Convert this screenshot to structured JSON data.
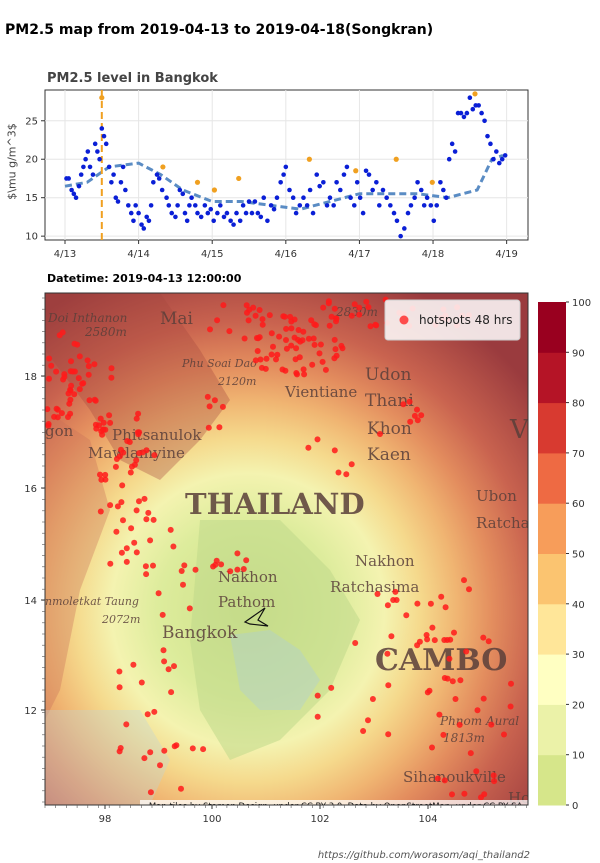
{
  "page": {
    "title": "PM2.5 map from 2019-04-13 to 2019-04-18(Songkran)",
    "footer": "https://github.com/worasom/aqi_thailand2"
  },
  "chart_data": [
    {
      "type": "scatter",
      "title": "PM2.5 level in Bangkok",
      "ylabel": "$\\mu g/m^3$",
      "xlabel": "",
      "x_ticks": [
        "4/13",
        "4/14",
        "4/15",
        "4/16",
        "4/17",
        "4/18",
        "4/19"
      ],
      "y_ticks": [
        10,
        15,
        20,
        25
      ],
      "xlim": [
        0,
        6.1
      ],
      "ylim": [
        9.5,
        29
      ],
      "current_time_marker": 0.5,
      "colors": {
        "scatter": "#0a1fd6",
        "highlight": "#f0a020",
        "trend": "#5a8cc4",
        "marker_line": "#f0a020"
      },
      "series": [
        {
          "name": "",
          "x": [
            0.02,
            0.05,
            0.09,
            0.12,
            0.15,
            0.19,
            0.22,
            0.25,
            0.28,
            0.31,
            0.34,
            0.38,
            0.41,
            0.44,
            0.47,
            0.5,
            0.53,
            0.56,
            0.6,
            0.63,
            0.66,
            0.69,
            0.72,
            0.76,
            0.79,
            0.82,
            0.86,
            0.9,
            0.93,
            0.96,
            1.0,
            1.04,
            1.07,
            1.11,
            1.14,
            1.17,
            1.2,
            1.25,
            1.28,
            1.32,
            1.38,
            1.41,
            1.45,
            1.5,
            1.53,
            1.56,
            1.6,
            1.63,
            1.66,
            1.69,
            1.72,
            1.77,
            1.8,
            1.85,
            1.9,
            1.94,
            1.98,
            2.02,
            2.07,
            2.11,
            2.16,
            2.2,
            2.25,
            2.29,
            2.33,
            2.38,
            2.42,
            2.46,
            2.5,
            2.54,
            2.58,
            2.62,
            2.66,
            2.7,
            2.75,
            2.8,
            2.84,
            2.88,
            2.93,
            2.97,
            3.0,
            3.05,
            3.1,
            3.14,
            3.19,
            3.24,
            3.29,
            3.33,
            3.37,
            3.42,
            3.46,
            3.51,
            3.56,
            3.6,
            3.65,
            3.69,
            3.74,
            3.79,
            3.83,
            3.88,
            3.93,
            3.97,
            4.01,
            4.05,
            4.09,
            4.13,
            4.18,
            4.23,
            4.27,
            4.32,
            4.37,
            4.42,
            4.47,
            4.51,
            4.56,
            4.61,
            4.66,
            4.7,
            4.75,
            4.79,
            4.84,
            4.88,
            4.92,
            4.97,
            5.01,
            5.05,
            5.1,
            5.14,
            5.18,
            5.22,
            5.26,
            5.3,
            5.34,
            5.38,
            5.42,
            5.46,
            5.5,
            5.54,
            5.58,
            5.62,
            5.66,
            5.7,
            5.74,
            5.78,
            5.82,
            5.86,
            5.9,
            5.94,
            5.98
          ],
          "y": [
            17.5,
            17.5,
            16,
            15.5,
            15,
            16.5,
            18,
            19,
            20,
            21,
            19,
            18,
            22,
            21,
            20,
            24,
            23,
            22,
            19,
            17,
            18,
            15,
            14.5,
            17,
            19,
            16,
            14,
            13,
            12,
            14,
            13,
            11.5,
            11,
            12.5,
            12,
            14,
            17,
            18,
            17.5,
            16,
            15,
            14,
            13,
            12.5,
            14,
            16,
            15.5,
            13,
            12,
            14,
            15,
            14,
            13,
            12.5,
            14,
            13,
            13.5,
            12,
            13,
            14,
            12.5,
            13,
            12,
            11.5,
            13,
            12,
            14,
            13,
            14.5,
            13,
            14.5,
            13,
            12.5,
            15,
            12,
            14,
            13.5,
            15,
            17,
            18,
            19,
            16,
            15,
            13,
            14,
            15,
            14,
            16,
            13,
            18,
            16.5,
            17,
            14,
            15,
            14,
            17,
            16,
            18,
            19,
            15,
            14,
            17,
            15,
            13,
            18.5,
            18,
            16,
            17,
            14,
            16,
            15,
            14,
            13,
            12,
            10,
            11,
            13,
            14,
            15,
            17,
            16,
            14,
            15,
            14,
            12,
            14,
            17,
            16,
            15,
            20,
            22,
            21,
            26,
            26,
            25.5,
            26,
            28,
            26.5,
            27,
            27,
            26,
            25,
            23,
            22,
            20,
            21,
            19.5,
            20,
            20.5
          ]
        },
        {
          "name": "",
          "x": [
            0.5,
            1.33,
            1.8,
            2.03,
            2.36,
            3.32,
            3.95,
            4.5,
            4.99,
            5.57
          ],
          "y": [
            28,
            19,
            17,
            16,
            17.5,
            20,
            18.5,
            20,
            17,
            28.5
          ]
        },
        {
          "name": "",
          "x": [
            0,
            0.3,
            0.6,
            1.0,
            1.3,
            1.6,
            2.0,
            2.4,
            2.8,
            3.2,
            3.6,
            4.0,
            4.4,
            4.8,
            5.2,
            5.6,
            5.8,
            5.95
          ],
          "y": [
            16.5,
            17,
            19,
            19.5,
            18,
            16,
            14.5,
            14.5,
            14,
            13.5,
            14.5,
            15.5,
            15.5,
            15.5,
            15,
            16,
            20,
            20.5
          ]
        }
      ]
    },
    {
      "type": "heatmap",
      "title": "Datetime: 2019-04-13 12:00:00",
      "x_ticks": [
        "98",
        "100",
        "102",
        "104"
      ],
      "y_ticks": [
        "12",
        "14",
        "16",
        "18"
      ],
      "legend": {
        "label": "hotspots 48 hrs",
        "placement": "top-right"
      },
      "colorbar": {
        "min": 0,
        "max": 100,
        "ticks": [
          "100",
          "90",
          "80",
          "70",
          "60",
          "50",
          "40",
          "30",
          "20",
          "10",
          "0"
        ],
        "colors": [
          "#d6e68a",
          "#ebf2a8",
          "#ffffc2",
          "#ffe699",
          "#fbc470",
          "#f79d5a",
          "#ee6a43",
          "#d83a30",
          "#b51426",
          "#99001f"
        ]
      },
      "attribution": "Map tiles by Stamen Design, under CC BY 3.0. Data by OpenStreetMap, under CC BY SA.",
      "place_labels": [
        "Doi Inthanon",
        "2580m",
        "Mai",
        "Phu Soai Dao",
        "2120m",
        "Vientiane",
        "Udon",
        "Thani",
        "Khon",
        "Kaen",
        "Phitsanulok",
        "Mawlamyine",
        "THAILAND",
        "Ubon",
        "Ratchat",
        "Nakhon",
        "Ratchasima",
        "Nakhon",
        "Pathom",
        "Bangkok",
        "nmoletkat Taung",
        "2072m",
        "CAMBO",
        "Phnom Aural",
        "1813m",
        "Sihanoukville",
        "Ho",
        "2830m",
        "gon",
        "V"
      ]
    }
  ]
}
